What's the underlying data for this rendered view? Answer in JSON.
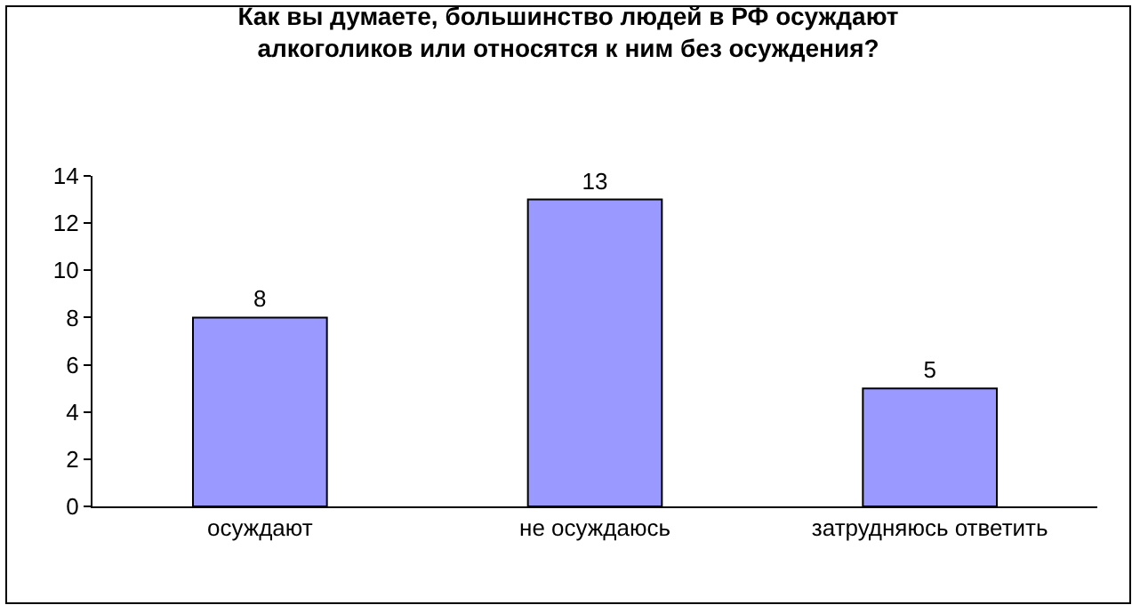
{
  "chart_data": {
    "type": "bar",
    "title": "Как вы думаете, большинство людей в РФ осуждают\nалкоголиков или относятся к ним без осуждения?",
    "categories": [
      "осуждают",
      "не осуждаюсь",
      "затрудняюсь ответить"
    ],
    "values": [
      8,
      13,
      5
    ],
    "color": "#9999ff",
    "ylim": [
      0,
      14
    ],
    "yticks": [
      0,
      2,
      4,
      6,
      8,
      10,
      12,
      14
    ],
    "grid": false,
    "data_labels": true,
    "legend": false
  }
}
